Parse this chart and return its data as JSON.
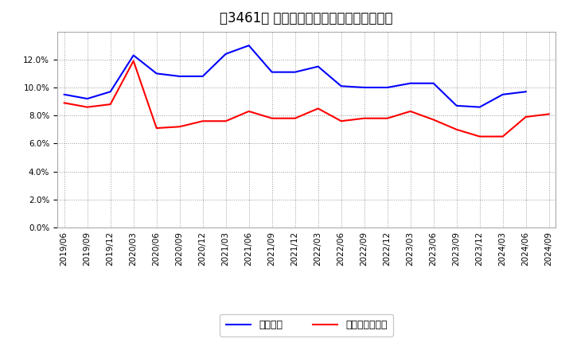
{
  "title": "［3461］ 固定比率、固定長期適合率の推移",
  "x_labels": [
    "2019/06",
    "2019/09",
    "2019/12",
    "2020/03",
    "2020/06",
    "2020/09",
    "2020/12",
    "2021/03",
    "2021/06",
    "2021/09",
    "2021/12",
    "2022/03",
    "2022/06",
    "2022/09",
    "2022/12",
    "2023/03",
    "2023/06",
    "2023/09",
    "2023/12",
    "2024/03",
    "2024/06",
    "2024/09"
  ],
  "blue_values": [
    9.5,
    9.2,
    9.7,
    12.3,
    11.0,
    10.8,
    10.8,
    12.4,
    13.0,
    11.1,
    11.1,
    11.5,
    10.1,
    10.0,
    10.0,
    10.3,
    10.3,
    8.7,
    8.6,
    9.5,
    9.7,
    null
  ],
  "red_values": [
    8.9,
    8.6,
    8.8,
    11.9,
    7.1,
    7.2,
    7.6,
    7.6,
    8.3,
    7.8,
    7.8,
    8.5,
    7.6,
    7.8,
    7.8,
    8.3,
    7.7,
    7.0,
    6.5,
    6.5,
    7.9,
    8.1
  ],
  "blue_color": "#0000ff",
  "red_color": "#ff0000",
  "ylim": [
    0.0,
    14.0
  ],
  "yticks": [
    0.0,
    2.0,
    4.0,
    6.0,
    8.0,
    10.0,
    12.0
  ],
  "background_color": "#ffffff",
  "grid_color": "#999999",
  "legend_blue": "固定比率",
  "legend_red": "固定長期適合率",
  "title_fontsize": 12,
  "tick_fontsize": 7.5,
  "legend_fontsize": 9
}
